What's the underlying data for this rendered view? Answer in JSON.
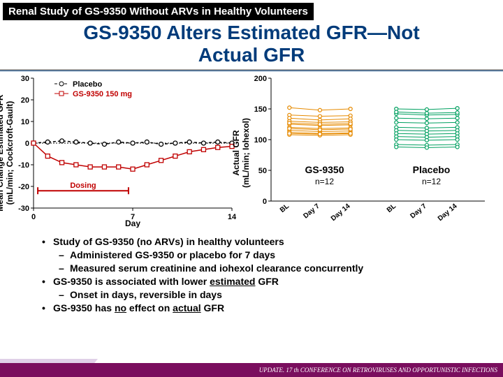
{
  "banner": "Renal Study of GS-9350 Without ARVs in Healthy Volunteers",
  "title_l1": "GS-9350 Alters Estimated GFR—Not",
  "title_l2": "Actual GFR",
  "chart1": {
    "ylabel": "Mean Change Estimated GFR\n(mL/min; Cockcroft-Gault)",
    "xlabel": "Day",
    "ylim": [
      -30,
      30
    ],
    "yticks": [
      30,
      20,
      10,
      0,
      -10,
      -20,
      -30
    ],
    "xlim": [
      0,
      14
    ],
    "xticks": [
      0,
      7,
      14
    ],
    "legend": [
      {
        "label": "Placebo",
        "color": "#000000",
        "marker": "circle",
        "dash": true
      },
      {
        "label": "GS-9350 150 mg",
        "color": "#c00000",
        "marker": "square",
        "dash": false
      }
    ],
    "dosing_label": "Dosing",
    "dosing_range": [
      0.3,
      6.7
    ],
    "dosing_color": "#c00000",
    "series": {
      "placebo": {
        "x": [
          0,
          1,
          2,
          3,
          4,
          5,
          6,
          7,
          8,
          9,
          10,
          11,
          12,
          13,
          14
        ],
        "y": [
          0,
          0.5,
          1,
          0.5,
          0,
          -0.5,
          0.5,
          0,
          0.5,
          -0.5,
          0,
          0.5,
          0,
          0.5,
          0
        ]
      },
      "gs9350": {
        "x": [
          0,
          1,
          2,
          3,
          4,
          5,
          6,
          7,
          8,
          9,
          10,
          11,
          12,
          13,
          14
        ],
        "y": [
          0,
          -6,
          -9,
          -10,
          -11,
          -11,
          -11,
          -12,
          -10,
          -8,
          -6,
          -4,
          -3,
          -2,
          -1.5
        ]
      }
    }
  },
  "chart2": {
    "ylabel": "Actual GFR\n(mL/min; Iohexol)",
    "ylim": [
      0,
      200
    ],
    "yticks": [
      0,
      50,
      100,
      150,
      200
    ],
    "groups": [
      {
        "label": "GS-9350",
        "n": "n=12",
        "color": "#e68a00",
        "xcenter": 1
      },
      {
        "label": "Placebo",
        "n": "n=12",
        "color": "#00a060",
        "xcenter": 2
      }
    ],
    "timepoints": [
      "BL",
      "Day 7",
      "Day 14"
    ],
    "gs9350_subjects": [
      [
        152,
        148,
        150
      ],
      [
        140,
        138,
        139
      ],
      [
        135,
        132,
        134
      ],
      [
        130,
        128,
        129
      ],
      [
        125,
        123,
        124
      ],
      [
        120,
        118,
        119
      ],
      [
        115,
        113,
        114
      ],
      [
        112,
        110,
        111
      ],
      [
        108,
        107,
        108
      ],
      [
        118,
        116,
        117
      ],
      [
        127,
        125,
        126
      ],
      [
        110,
        109,
        110
      ]
    ],
    "placebo_subjects": [
      [
        150,
        149,
        151
      ],
      [
        142,
        140,
        141
      ],
      [
        135,
        134,
        135
      ],
      [
        128,
        127,
        128
      ],
      [
        145,
        143,
        144
      ],
      [
        120,
        119,
        120
      ],
      [
        115,
        114,
        115
      ],
      [
        110,
        109,
        110
      ],
      [
        105,
        104,
        105
      ],
      [
        100,
        99,
        100
      ],
      [
        92,
        91,
        92
      ],
      [
        88,
        87,
        88
      ]
    ]
  },
  "bullets": [
    {
      "text": "Study of GS-9350 (no ARVs) in healthy volunteers",
      "sub": false
    },
    {
      "text": "Administered GS-9350 or placebo for 7 days",
      "sub": true
    },
    {
      "text": "Measured serum creatinine and iohexol clearance concurrently",
      "sub": true
    },
    {
      "text_html": "GS-9350 is associated with lower <span class='underline'>estimated</span> GFR",
      "sub": false
    },
    {
      "text": "Onset in days, reversible in days",
      "sub": true
    },
    {
      "text_html": "GS-9350 has <span class='underline'>no</span> effect on <span class='underline'>actual</span> GFR",
      "sub": false
    }
  ],
  "footer": "UPDATE. 17 th CONFERENCE ON RETROVIRUSES AND OPPORTUNISTIC INFECTIONS"
}
